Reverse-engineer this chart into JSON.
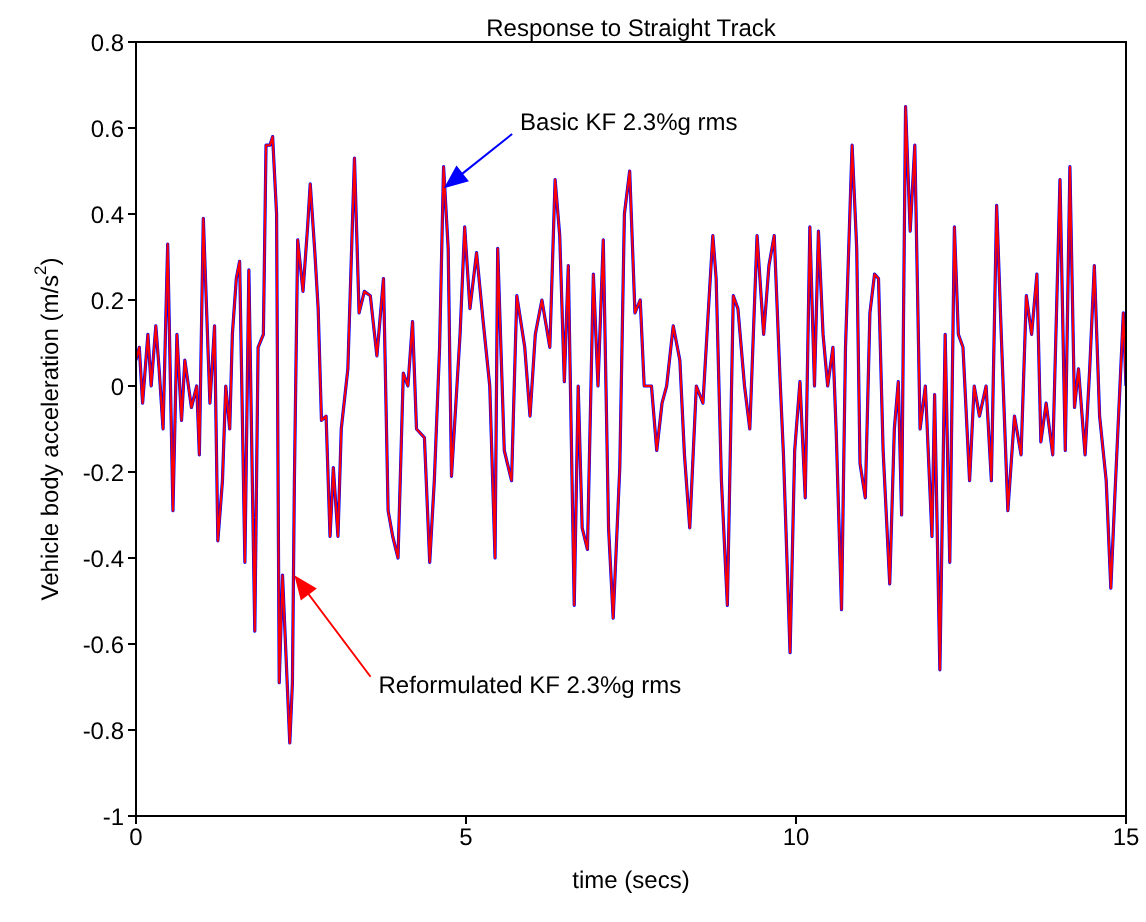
{
  "chart_data": {
    "type": "line",
    "title": "Response to Straight Track",
    "xlabel": "time (secs)",
    "ylabel": "Vehicle body acceleration (m/s$^{2}$)",
    "x": [
      0,
      0.05,
      0.1,
      0.18,
      0.23,
      0.3,
      0.35,
      0.41,
      0.48,
      0.56,
      0.62,
      0.69,
      0.74,
      0.84,
      0.92,
      0.96,
      1.02,
      1.12,
      1.19,
      1.24,
      1.31,
      1.36,
      1.42,
      1.46,
      1.52,
      1.57,
      1.65,
      1.71,
      1.8,
      1.85,
      1.93,
      1.97,
      2.03,
      2.07,
      2.13,
      2.17,
      2.22,
      2.33,
      2.37,
      2.4,
      2.45,
      2.53,
      2.6,
      2.64,
      2.71,
      2.76,
      2.81,
      2.88,
      2.94,
      2.99,
      3.06,
      3.11,
      3.21,
      3.31,
      3.38,
      3.46,
      3.55,
      3.65,
      3.75,
      3.82,
      3.89,
      3.97,
      4.05,
      4.12,
      4.19,
      4.25,
      4.37,
      4.45,
      4.52,
      4.6,
      4.66,
      4.73,
      4.78,
      4.91,
      4.98,
      5.06,
      5.16,
      5.26,
      5.36,
      5.44,
      5.48,
      5.58,
      5.69,
      5.77,
      5.89,
      5.97,
      6.05,
      6.15,
      6.27,
      6.35,
      6.42,
      6.49,
      6.55,
      6.64,
      6.7,
      6.76,
      6.84,
      6.93,
      7.0,
      7.08,
      7.16,
      7.23,
      7.33,
      7.4,
      7.48,
      7.56,
      7.64,
      7.7,
      7.81,
      7.89,
      7.97,
      8.04,
      8.14,
      8.24,
      8.31,
      8.39,
      8.49,
      8.59,
      8.67,
      8.74,
      8.79,
      8.87,
      8.96,
      9.05,
      9.12,
      9.22,
      9.3,
      9.41,
      9.51,
      9.59,
      9.67,
      9.76,
      9.81,
      9.91,
      9.98,
      10.06,
      10.14,
      10.21,
      10.28,
      10.34,
      10.41,
      10.48,
      10.56,
      10.61,
      10.69,
      10.75,
      10.85,
      10.92,
      10.97,
      11.05,
      11.12,
      11.19,
      11.25,
      11.32,
      11.42,
      11.49,
      11.55,
      11.6,
      11.66,
      11.73,
      11.8,
      11.88,
      11.96,
      12.06,
      12.1,
      12.18,
      12.26,
      12.33,
      12.4,
      12.46,
      12.53,
      12.63,
      12.7,
      12.78,
      12.88,
      12.96,
      13.04,
      13.11,
      13.21,
      13.31,
      13.41,
      13.49,
      13.57,
      13.65,
      13.71,
      13.79,
      13.89,
      14.0,
      14.08,
      14.15,
      14.22,
      14.28,
      14.38,
      14.45,
      14.52,
      14.6,
      14.7,
      14.77,
      14.83,
      14.96,
      15.0
    ],
    "series": [
      {
        "color": "#0000ff",
        "values": [
          0.06,
          0.09,
          -0.04,
          0.12,
          0,
          0.14,
          0.04,
          -0.1,
          0.33,
          -0.29,
          0.12,
          -0.08,
          0.06,
          -0.05,
          0,
          -0.16,
          0.39,
          -0.04,
          0.14,
          -0.36,
          -0.22,
          0,
          -0.1,
          0.12,
          0.25,
          0.29,
          -0.41,
          0.27,
          -0.57,
          0.09,
          0.12,
          0.56,
          0.56,
          0.58,
          0.4,
          -0.69,
          -0.44,
          -0.83,
          -0.69,
          -0.22,
          0.34,
          0.22,
          0.37,
          0.47,
          0.31,
          0.18,
          -0.08,
          -0.07,
          -0.35,
          -0.19,
          -0.35,
          -0.1,
          0.04,
          0.53,
          0.17,
          0.22,
          0.21,
          0.07,
          0.25,
          -0.29,
          -0.35,
          -0.4,
          0.03,
          0,
          0.15,
          -0.1,
          -0.12,
          -0.41,
          -0.22,
          0.09,
          0.51,
          0.32,
          -0.21,
          0.12,
          0.37,
          0.18,
          0.31,
          0.15,
          0,
          -0.4,
          0.32,
          -0.15,
          -0.22,
          0.21,
          0.09,
          -0.07,
          0.12,
          0.2,
          0.09,
          0.48,
          0.35,
          0.01,
          0.28,
          -0.51,
          0,
          -0.33,
          -0.38,
          0.26,
          0,
          0.34,
          -0.33,
          -0.54,
          -0.19,
          0.4,
          0.5,
          0.17,
          0.2,
          0,
          0,
          -0.15,
          -0.04,
          0,
          0.14,
          0.06,
          -0.16,
          -0.33,
          0,
          -0.04,
          0.17,
          0.35,
          0.25,
          -0.22,
          -0.51,
          0.21,
          0.18,
          0,
          -0.1,
          0.35,
          0.12,
          0.28,
          0.35,
          0.01,
          -0.16,
          -0.62,
          -0.15,
          0.01,
          -0.26,
          0.37,
          0,
          0.36,
          0.12,
          0,
          0.09,
          -0.11,
          -0.52,
          0.09,
          0.56,
          0.32,
          -0.18,
          -0.26,
          0.17,
          0.26,
          0.25,
          -0.15,
          -0.46,
          -0.1,
          0.01,
          -0.3,
          0.65,
          0.36,
          0.56,
          -0.1,
          0,
          -0.35,
          -0.02,
          -0.66,
          0.12,
          -0.41,
          0.37,
          0.12,
          0.09,
          -0.22,
          0,
          -0.07,
          0,
          -0.22,
          0.42,
          0.12,
          -0.29,
          -0.07,
          -0.16,
          0.21,
          0.12,
          0.26,
          -0.13,
          -0.04,
          -0.16,
          0.48,
          -0.15,
          0.51,
          -0.05,
          0.04,
          -0.16,
          0.04,
          0.28,
          -0.07,
          -0.22,
          -0.47,
          -0.26,
          0.17,
          0
        ]
      },
      {
        "color": "#ff0000",
        "values": [
          0.06,
          0.09,
          -0.04,
          0.12,
          0,
          0.14,
          0.04,
          -0.1,
          0.33,
          -0.29,
          0.12,
          -0.08,
          0.06,
          -0.05,
          0,
          -0.16,
          0.39,
          -0.04,
          0.14,
          -0.36,
          -0.22,
          0,
          -0.1,
          0.12,
          0.25,
          0.29,
          -0.41,
          0.27,
          -0.57,
          0.09,
          0.12,
          0.56,
          0.56,
          0.58,
          0.4,
          -0.69,
          -0.44,
          -0.83,
          -0.69,
          -0.22,
          0.34,
          0.22,
          0.37,
          0.47,
          0.31,
          0.18,
          -0.08,
          -0.07,
          -0.35,
          -0.19,
          -0.35,
          -0.1,
          0.04,
          0.53,
          0.17,
          0.22,
          0.21,
          0.07,
          0.25,
          -0.29,
          -0.35,
          -0.4,
          0.03,
          0,
          0.15,
          -0.1,
          -0.12,
          -0.41,
          -0.22,
          0.09,
          0.51,
          0.32,
          -0.21,
          0.12,
          0.37,
          0.18,
          0.31,
          0.15,
          0,
          -0.4,
          0.32,
          -0.15,
          -0.22,
          0.21,
          0.09,
          -0.07,
          0.12,
          0.2,
          0.09,
          0.48,
          0.35,
          0.01,
          0.28,
          -0.51,
          0,
          -0.33,
          -0.38,
          0.26,
          0,
          0.34,
          -0.33,
          -0.54,
          -0.19,
          0.4,
          0.5,
          0.17,
          0.2,
          0,
          0,
          -0.15,
          -0.04,
          0,
          0.14,
          0.06,
          -0.16,
          -0.33,
          0,
          -0.04,
          0.17,
          0.35,
          0.25,
          -0.22,
          -0.51,
          0.21,
          0.18,
          0,
          -0.1,
          0.35,
          0.12,
          0.28,
          0.35,
          0.01,
          -0.16,
          -0.62,
          -0.15,
          0.01,
          -0.26,
          0.37,
          0,
          0.36,
          0.12,
          0,
          0.09,
          -0.11,
          -0.52,
          0.09,
          0.56,
          0.32,
          -0.18,
          -0.26,
          0.17,
          0.26,
          0.25,
          -0.15,
          -0.46,
          -0.1,
          0.01,
          -0.3,
          0.65,
          0.36,
          0.56,
          -0.1,
          0,
          -0.35,
          -0.02,
          -0.66,
          0.12,
          -0.41,
          0.37,
          0.12,
          0.09,
          -0.22,
          0,
          -0.07,
          0,
          -0.22,
          0.42,
          0.12,
          -0.29,
          -0.07,
          -0.16,
          0.21,
          0.12,
          0.26,
          -0.13,
          -0.04,
          -0.16,
          0.48,
          -0.15,
          0.51,
          -0.05,
          0.04,
          -0.16,
          0.04,
          0.28,
          -0.07,
          -0.22,
          -0.47,
          -0.26,
          0.17,
          0
        ]
      }
    ],
    "annotations": [
      "Basic KF 2.3%g rms",
      "Reformulated KF 2.3%g rms"
    ],
    "xlim": [
      0,
      15
    ],
    "xticks": [
      0,
      5,
      10,
      15
    ],
    "ylim": [
      -1,
      0.8
    ],
    "yticks": [
      -1,
      -0.8,
      -0.6,
      -0.4,
      -0.2,
      0,
      0.2,
      0.4,
      0.6,
      0.8
    ],
    "grid": false,
    "legend": false,
    "marker": "none",
    "line_style": "solid"
  }
}
